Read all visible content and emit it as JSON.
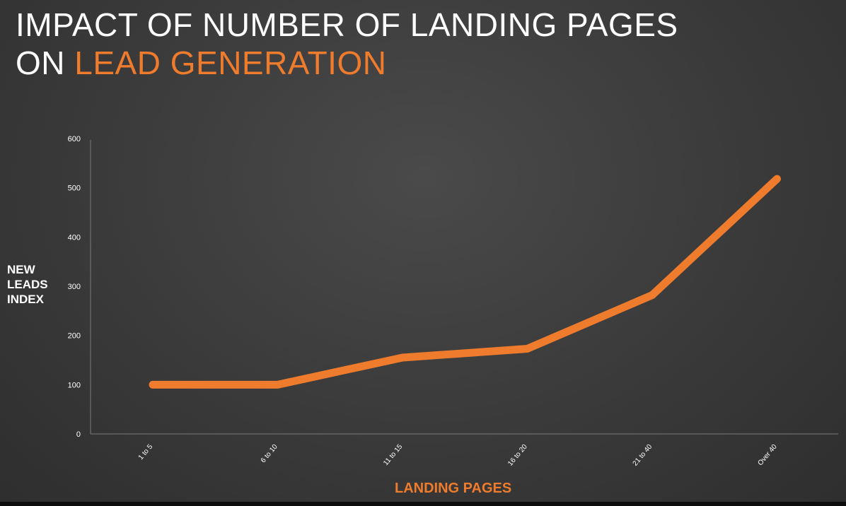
{
  "chart_data": {
    "type": "line",
    "title_line1": "IMPACT OF NUMBER OF LANDING PAGES",
    "title_line2_prefix": "ON ",
    "title_line2_accent": "LEAD GENERATION",
    "xlabel": "LANDING PAGES",
    "ylabel_lines": [
      "NEW",
      "LEADS",
      "INDEX"
    ],
    "categories": [
      "1 to 5",
      "6 to 10",
      "11 to 15",
      "16 to 20",
      "21 to 40",
      "Over 40"
    ],
    "series": [
      {
        "values": [
          100,
          100,
          155,
          173,
          282,
          518
        ],
        "color": "#ef7b2d"
      }
    ],
    "ylim": [
      0,
      600
    ],
    "yticks": [
      0,
      100,
      200,
      300,
      400,
      500,
      600
    ],
    "grid": false
  }
}
